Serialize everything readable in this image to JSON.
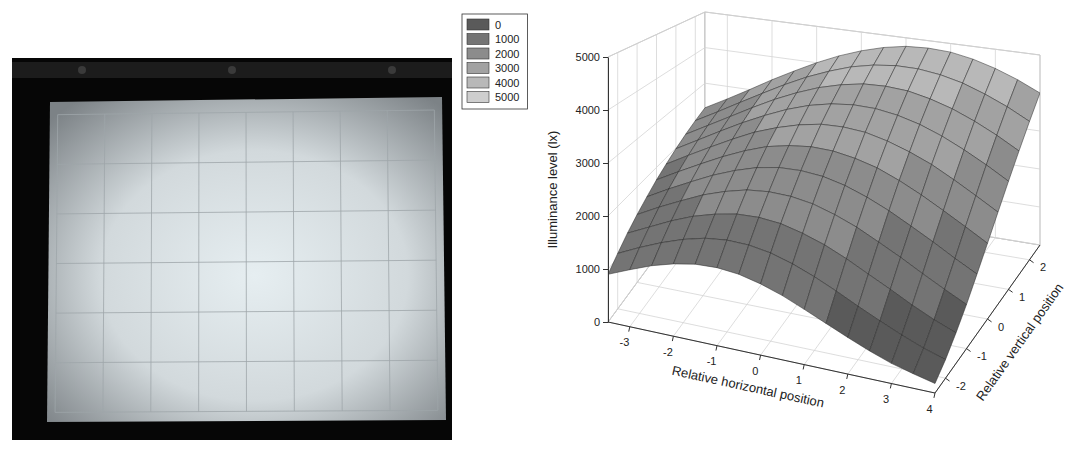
{
  "photo": {
    "grid_columns": 8,
    "grid_rows": 6
  },
  "chart_data": {
    "type": "surface",
    "xlabel": "Relative horizontal position",
    "ylabel": "Relative vertical position",
    "zlabel": "Illuminance level (lx)",
    "x": [
      -3.5,
      -3,
      -2.5,
      -2,
      -1.5,
      -1,
      -0.5,
      0,
      0.5,
      1,
      1.5,
      2,
      2.5,
      3,
      3.5,
      4
    ],
    "y": [
      -2.5,
      -2,
      -1.5,
      -1,
      -0.5,
      0,
      0.5,
      1,
      1.5,
      2,
      2.5
    ],
    "z": [
      [
        900,
        1080,
        1250,
        1380,
        1470,
        1500,
        1470,
        1380,
        1250,
        1080,
        900,
        720,
        550,
        400,
        290,
        190
      ],
      [
        1080,
        1290,
        1480,
        1640,
        1760,
        1820,
        1820,
        1760,
        1640,
        1480,
        1290,
        1080,
        880,
        690,
        520,
        380
      ],
      [
        1260,
        1480,
        1700,
        1890,
        2030,
        2130,
        2160,
        2130,
        2030,
        1890,
        1700,
        1480,
        1260,
        1030,
        820,
        640
      ],
      [
        1420,
        1670,
        1900,
        2120,
        2290,
        2420,
        2480,
        2480,
        2420,
        2290,
        2120,
        1900,
        1670,
        1420,
        1180,
        950
      ],
      [
        1570,
        1840,
        2090,
        2330,
        2530,
        2690,
        2790,
        2820,
        2790,
        2690,
        2530,
        2330,
        2090,
        1840,
        1570,
        1320
      ],
      [
        1720,
        2000,
        2270,
        2530,
        2760,
        2950,
        3070,
        3140,
        3140,
        3070,
        2950,
        2760,
        2530,
        2270,
        2000,
        1720
      ],
      [
        1850,
        2150,
        2440,
        2720,
        2980,
        3180,
        3340,
        3450,
        3480,
        3450,
        3340,
        3180,
        2980,
        2720,
        2440,
        2150
      ],
      [
        1980,
        2290,
        2600,
        2900,
        3170,
        3410,
        3600,
        3730,
        3800,
        3800,
        3730,
        3600,
        3410,
        3170,
        2900,
        2600
      ],
      [
        2100,
        2420,
        2740,
        3060,
        3360,
        3620,
        3840,
        4000,
        4110,
        4140,
        4110,
        4000,
        3840,
        3620,
        3360,
        3060
      ],
      [
        2210,
        2540,
        2880,
        3210,
        3530,
        3820,
        4060,
        4260,
        4390,
        4460,
        4460,
        4390,
        4260,
        4060,
        3820,
        3530
      ],
      [
        2310,
        2650,
        3000,
        3360,
        3690,
        4000,
        4270,
        4490,
        4660,
        4770,
        4800,
        4770,
        4660,
        4490,
        4270,
        4000
      ]
    ],
    "xlim": [
      -3.5,
      4
    ],
    "xticks": [
      -3,
      -2,
      -1,
      0,
      1,
      2,
      3,
      4
    ],
    "ylim": [
      -2.5,
      2.5
    ],
    "yticks": [
      -2,
      -1,
      0,
      1,
      2
    ],
    "zlim": [
      0,
      5000
    ],
    "zticks": [
      0,
      1000,
      2000,
      3000,
      4000,
      5000
    ],
    "levels": [
      0,
      1000,
      2000,
      3000,
      4000,
      5000
    ],
    "colors": [
      "#5a5a5a",
      "#747474",
      "#8c8c8c",
      "#a2a2a2",
      "#b8b8b8",
      "#cecece"
    ],
    "legend": "top-left",
    "grid": true
  }
}
